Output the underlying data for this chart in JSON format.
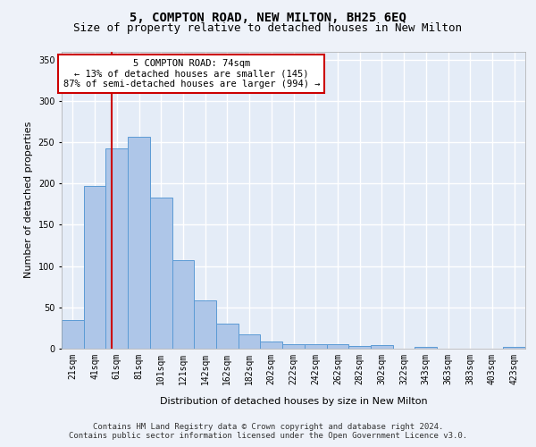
{
  "title_line1": "5, COMPTON ROAD, NEW MILTON, BH25 6EQ",
  "title_line2": "Size of property relative to detached houses in New Milton",
  "xlabel": "Distribution of detached houses by size in New Milton",
  "ylabel": "Number of detached properties",
  "categories": [
    "21sqm",
    "41sqm",
    "61sqm",
    "81sqm",
    "101sqm",
    "121sqm",
    "142sqm",
    "162sqm",
    "182sqm",
    "202sqm",
    "222sqm",
    "242sqm",
    "262sqm",
    "282sqm",
    "302sqm",
    "322sqm",
    "343sqm",
    "363sqm",
    "383sqm",
    "403sqm",
    "423sqm"
  ],
  "values": [
    35,
    197,
    242,
    257,
    183,
    107,
    58,
    30,
    17,
    9,
    5,
    5,
    5,
    3,
    4,
    0,
    2,
    0,
    0,
    0,
    2
  ],
  "bar_color": "#aec6e8",
  "bar_edge_color": "#5b9bd5",
  "vline_x": 1.75,
  "vline_color": "#cc0000",
  "annotation_text": "5 COMPTON ROAD: 74sqm\n← 13% of detached houses are smaller (145)\n87% of semi-detached houses are larger (994) →",
  "annotation_box_color": "#ffffff",
  "annotation_box_edge_color": "#cc0000",
  "ylim": [
    0,
    360
  ],
  "yticks": [
    0,
    50,
    100,
    150,
    200,
    250,
    300,
    350
  ],
  "footer_line1": "Contains HM Land Registry data © Crown copyright and database right 2024.",
  "footer_line2": "Contains public sector information licensed under the Open Government Licence v3.0.",
  "bg_color": "#eef2f9",
  "plot_bg_color": "#e4ecf7",
  "grid_color": "#ffffff",
  "title_fontsize": 10,
  "subtitle_fontsize": 9,
  "axis_label_fontsize": 8,
  "tick_fontsize": 7,
  "footer_fontsize": 6.5
}
